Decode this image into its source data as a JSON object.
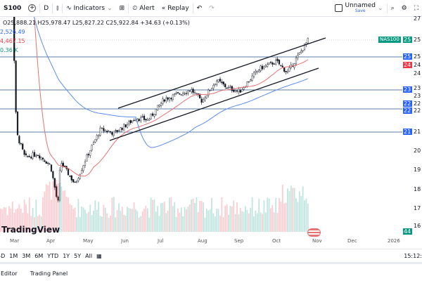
{
  "toolbar": {
    "symbol": "S100",
    "interval": "D",
    "indicators": "Indicators",
    "alert": "Alert",
    "replay": "Replay",
    "layout_name": "Unnamed",
    "layout_save": "Save"
  },
  "ohlc": "O25,888.21 H25,978.47 L25,827.22 C25,922.84 +34.63 (+0.13%)",
  "indicators": [
    {
      "value": "2,526.49",
      "color": "#2962ff"
    },
    {
      "value": "4,467.15",
      "color": "#f23645"
    },
    {
      "value": "0.36 K",
      "color": "#089981"
    }
  ],
  "symbol_tag": "NAS100",
  "price_scale": [
    "27",
    "25",
    "25",
    "24",
    "24",
    "23",
    "23",
    "22",
    "22",
    "21",
    "20",
    "19",
    "18",
    "17",
    "16"
  ],
  "price_boxes": [
    {
      "text": "25",
      "color": "#089981"
    },
    {
      "text": "25",
      "color": "#2962ff"
    },
    {
      "text": "24",
      "color": "#f23645"
    },
    {
      "text": "23",
      "color": "#2962ff"
    },
    {
      "text": "22",
      "color": "#2962ff"
    },
    {
      "text": "22",
      "color": "#2962ff"
    },
    {
      "text": "21",
      "color": "#2962ff"
    },
    {
      "text": "44",
      "color": "#089981"
    }
  ],
  "time_axis": [
    "Mar",
    "Apr",
    "May",
    "Jun",
    "Jul",
    "Aug",
    "Sep",
    "Oct",
    "Nov",
    "Dec",
    "2026"
  ],
  "logo": "TradingView",
  "ranges": [
    "5D",
    "1M",
    "3M",
    "6M",
    "YTD",
    "1Y",
    "5Y",
    "All"
  ],
  "clock": "15:12:",
  "bottom_tabs": [
    "Editor",
    "Trading Panel"
  ],
  "colors": {
    "up": "#089981",
    "down": "#f23645",
    "ma_fast": "#e57373",
    "ma_slow": "#5b8def",
    "hline": "#5d7fa8"
  },
  "price_path": [
    [
      "Feb 20",
      21700
    ],
    [
      "Mar 3",
      21000
    ],
    [
      "Mar 10",
      19700
    ],
    [
      "Mar 20",
      19900
    ],
    [
      "Mar 31",
      19300
    ],
    [
      "Apr 7",
      17200
    ],
    [
      "Apr 9",
      19500
    ],
    [
      "Apr 21",
      18300
    ],
    [
      "May 1",
      19800
    ],
    [
      "May 12",
      21200
    ],
    [
      "May 23",
      21000
    ],
    [
      "Jun 10",
      21800
    ],
    [
      "Jun 20",
      21700
    ],
    [
      "Jul 3",
      22800
    ],
    [
      "Jul 25",
      23300
    ],
    [
      "Aug 1",
      22700
    ],
    [
      "Aug 13",
      23800
    ],
    [
      "Aug 22",
      23400
    ],
    [
      "Sep 2",
      23200
    ],
    [
      "Sep 18",
      24400
    ],
    [
      "Oct 1",
      24800
    ],
    [
      "Oct 10",
      24200
    ],
    [
      "Oct 20",
      25200
    ],
    [
      "Oct 27",
      25920
    ]
  ]
}
